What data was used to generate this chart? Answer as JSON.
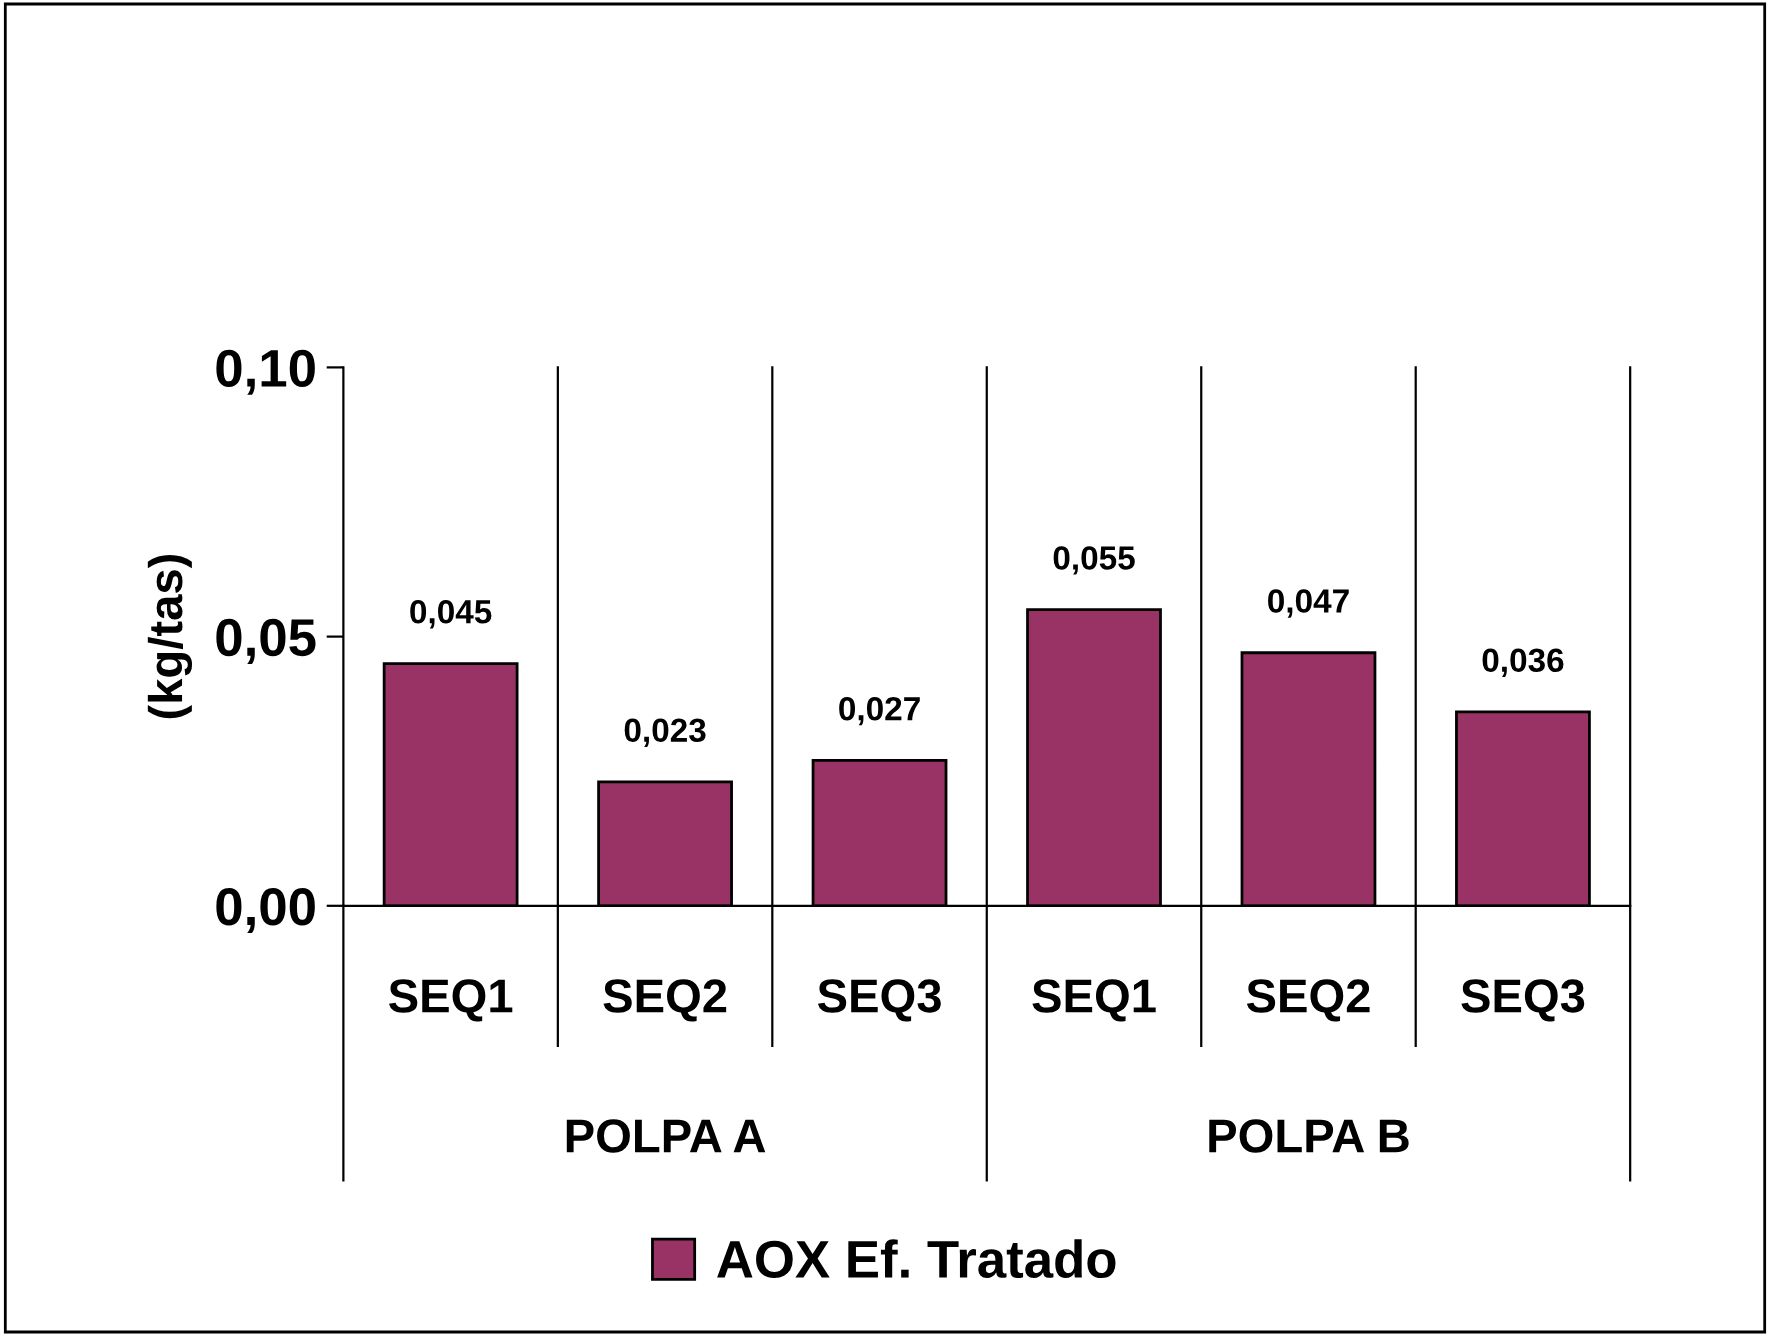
{
  "chart_data": {
    "type": "bar",
    "ylabel": "(kg/tas)",
    "categories": [
      "SEQ1",
      "SEQ2",
      "SEQ3",
      "SEQ1",
      "SEQ2",
      "SEQ3"
    ],
    "annotations": [
      "POLPA A",
      "POLPA B"
    ],
    "series": [
      {
        "name": "AOX Ef. Tratado",
        "color": "#993366",
        "values": [
          0.045,
          0.023,
          0.027,
          0.055,
          0.047,
          0.036
        ],
        "value_labels": [
          "0,045",
          "0,023",
          "0,027",
          "0,055",
          "0,047",
          "0,036"
        ]
      }
    ],
    "ylim": [
      0,
      0.1
    ],
    "yticks": [
      {
        "value": 0,
        "label": "0,00"
      },
      {
        "value": 0.05,
        "label": "0,05"
      },
      {
        "value": 0.1,
        "label": "0,10"
      }
    ],
    "grid": "x",
    "legend": "bottom"
  }
}
